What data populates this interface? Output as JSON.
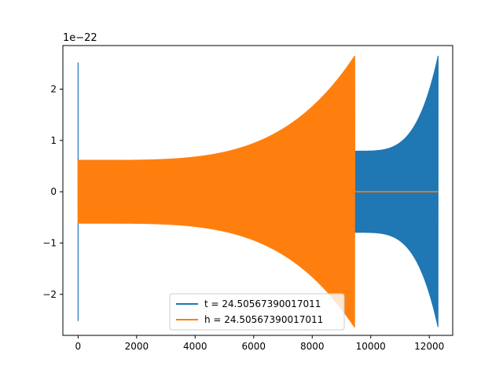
{
  "chart_data": {
    "type": "line",
    "title": "",
    "xlabel": "",
    "ylabel": "",
    "offset_label": "1e−22",
    "xlim": [
      -520,
      12800
    ],
    "ylim": [
      -2.8,
      2.85
    ],
    "xticks": [
      0,
      2000,
      4000,
      6000,
      8000,
      10000,
      12000
    ],
    "xtick_labels": [
      "0",
      "2000",
      "4000",
      "6000",
      "8000",
      "10000",
      "12000"
    ],
    "yticks": [
      -2,
      -1,
      0,
      1,
      2
    ],
    "ytick_labels": [
      "−2",
      "−1",
      "0",
      "1",
      "2"
    ],
    "grid": false,
    "legend_position": "lower center",
    "series": [
      {
        "name": "t = 24.50567390017011",
        "color": "#1f77b4",
        "x_range": [
          0,
          12300
        ],
        "baseline": 0,
        "spike_at_start": {
          "x": 0,
          "high": 2.52,
          "low": -2.52
        },
        "envelope": {
          "segments": [
            {
              "x_from": 0,
              "x_to": 9450,
              "amplitude_from": 0.62,
              "amplitude_to": 0.72
            },
            {
              "x_from": 9450,
              "x_to": 12300,
              "amplitude_from": 0.8,
              "amplitude_to": 2.65
            }
          ]
        }
      },
      {
        "name": "h = 24.50567390017011",
        "color": "#ff7f0e",
        "x_range": [
          0,
          12300
        ],
        "baseline": 0,
        "envelope": {
          "segments": [
            {
              "x_from": 0,
              "x_to": 9450,
              "amplitude_from": 0.62,
              "amplitude_to": 2.65
            },
            {
              "x_from": 9450,
              "x_to": 12300,
              "amplitude_from": 0.0,
              "amplitude_to": 0.0
            }
          ]
        }
      }
    ]
  }
}
